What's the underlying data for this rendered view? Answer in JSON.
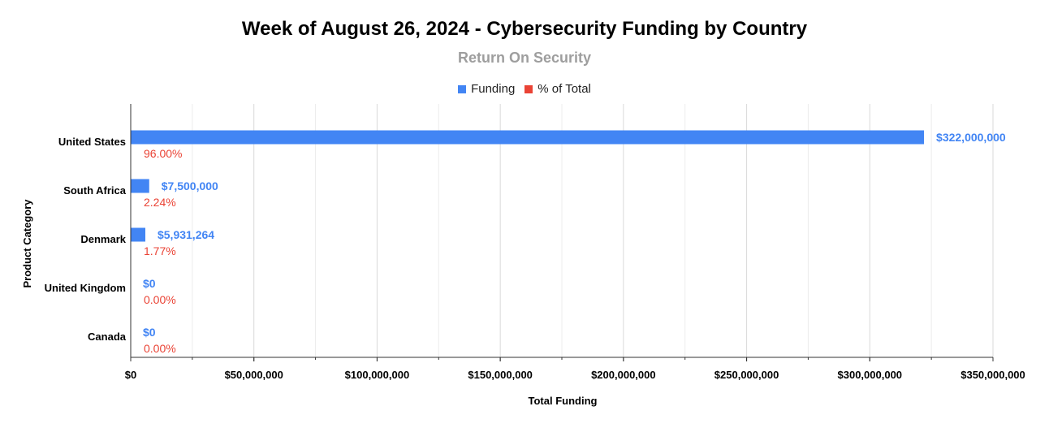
{
  "chart_data": {
    "type": "bar",
    "orientation": "horizontal",
    "title": "Week of August 26, 2024 - Cybersecurity Funding by Country",
    "subtitle": "Return On Security",
    "xlabel": "Total Funding",
    "ylabel": "Product Category",
    "categories": [
      "United States",
      "South Africa",
      "Denmark",
      "United Kingdom",
      "Canada"
    ],
    "series": [
      {
        "name": "Funding",
        "color": "#4285f4",
        "values": [
          322000000,
          7500000,
          5931264,
          0,
          0
        ],
        "labels": [
          "$322,000,000",
          "$7,500,000",
          "$5,931,264",
          "$0",
          "$0"
        ]
      },
      {
        "name": "% of Total",
        "color": "#ea4335",
        "values": [
          96.0,
          2.24,
          1.77,
          0.0,
          0.0
        ],
        "labels": [
          "96.00%",
          "2.24%",
          "1.77%",
          "0.00%",
          "0.00%"
        ]
      }
    ],
    "xlim": [
      0,
      350000000
    ],
    "xticks": [
      0,
      50000000,
      100000000,
      150000000,
      200000000,
      250000000,
      300000000,
      350000000
    ],
    "xtick_labels": [
      "$0",
      "$50,000,000",
      "$100,000,000",
      "$150,000,000",
      "$200,000,000",
      "$250,000,000",
      "$300,000,000",
      "$350,000,000"
    ],
    "grid": true,
    "legend_position": "top"
  }
}
